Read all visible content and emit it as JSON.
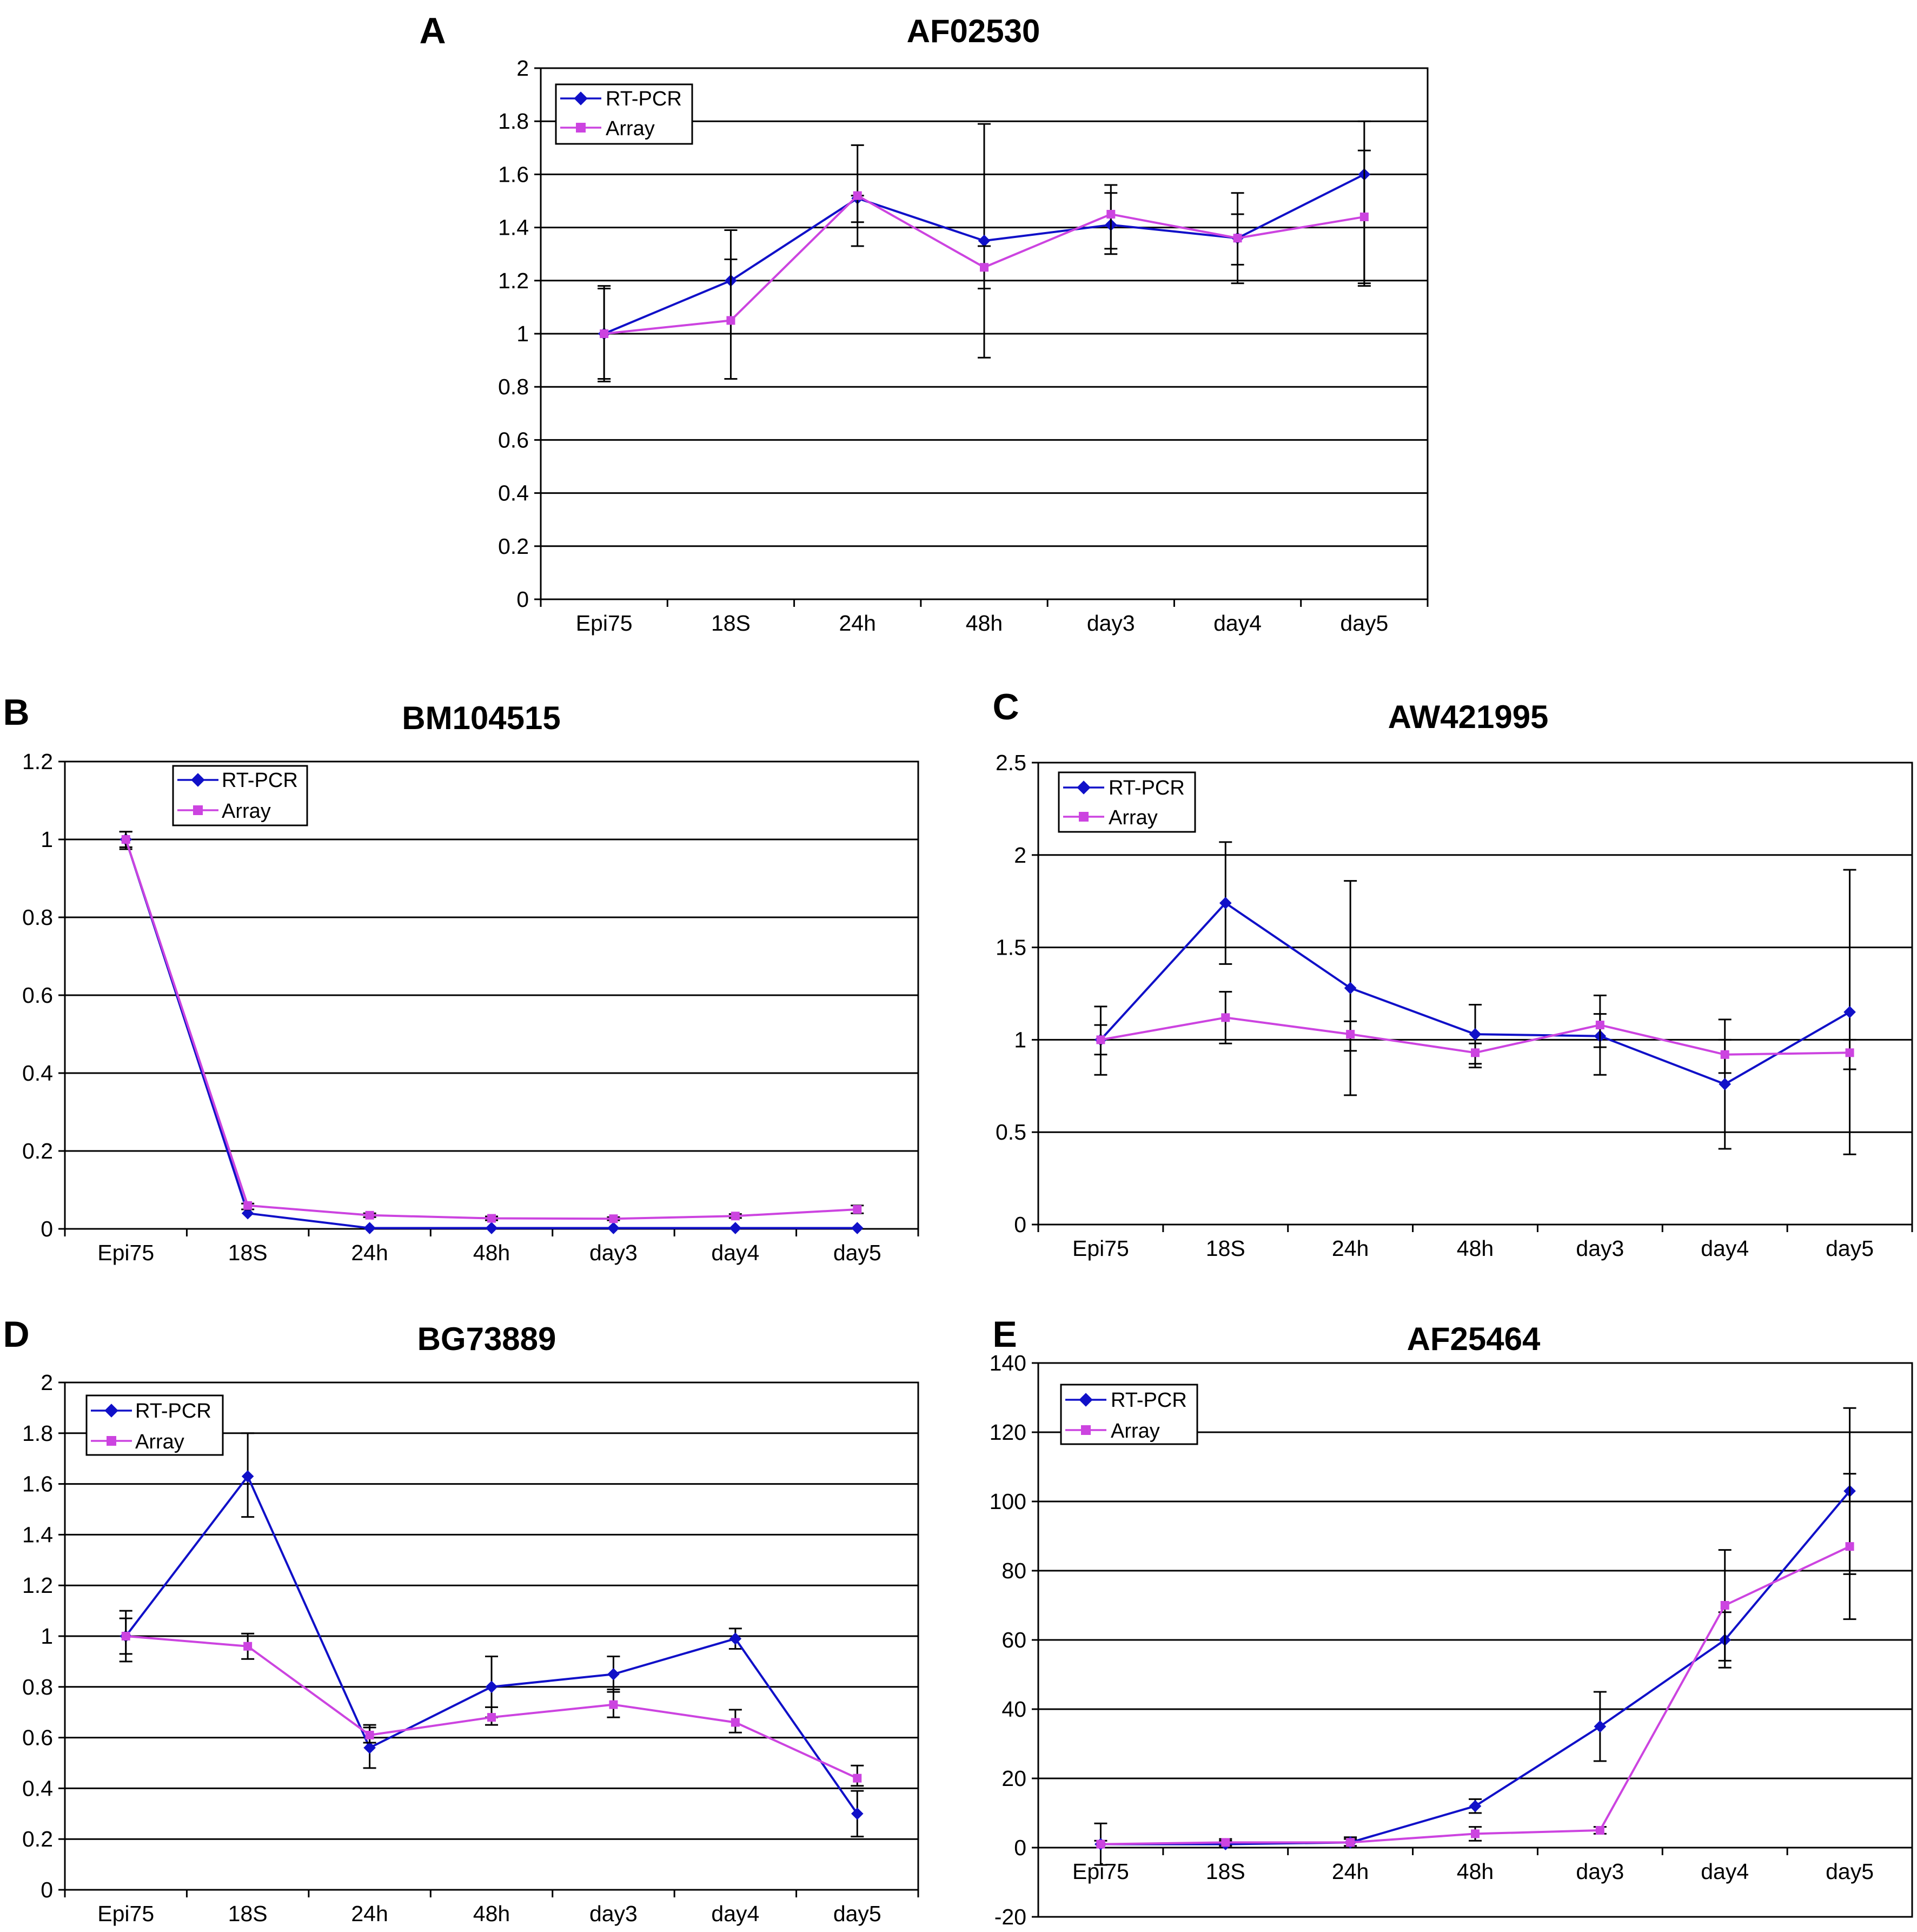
{
  "colors": {
    "rtpcr": "#1010c8",
    "array": "#cc44e0",
    "axis": "#000000",
    "grid": "#000000"
  },
  "chart_data": [
    {
      "panel": "A",
      "title": "AF02530",
      "type": "line",
      "categories": [
        "Epi75",
        "18S",
        "24h",
        "48h",
        "day3",
        "day4",
        "day5"
      ],
      "ylim": [
        0,
        2
      ],
      "yticks": [
        "0",
        "0.2",
        "0.4",
        "0.6",
        "0.8",
        "1",
        "1.2",
        "1.4",
        "1.6",
        "1.8",
        "2"
      ],
      "grid": true,
      "legend_position": "top-left",
      "series": [
        {
          "name": "RT-PCR",
          "values": [
            1.0,
            1.2,
            1.51,
            1.35,
            1.41,
            1.36,
            1.6
          ],
          "err_low": [
            0.82,
            1.0,
            1.33,
            0.91,
            1.32,
            1.19,
            1.19
          ],
          "err_high": [
            1.17,
            1.39,
            1.71,
            1.79,
            1.53,
            1.53,
            1.8
          ]
        },
        {
          "name": "Array",
          "values": [
            1.0,
            1.05,
            1.52,
            1.25,
            1.45,
            1.36,
            1.44
          ],
          "err_low": [
            0.83,
            0.83,
            1.42,
            1.17,
            1.3,
            1.26,
            1.18
          ],
          "err_high": [
            1.18,
            1.28,
            1.52,
            1.33,
            1.56,
            1.45,
            1.69
          ]
        }
      ]
    },
    {
      "panel": "B",
      "title": "BM104515",
      "type": "line",
      "categories": [
        "Epi75",
        "18S",
        "24h",
        "48h",
        "day3",
        "day4",
        "day5"
      ],
      "ylim": [
        0,
        1.2
      ],
      "yticks": [
        "0",
        "0.2",
        "0.4",
        "0.6",
        "0.8",
        "1",
        "1.2"
      ],
      "grid": true,
      "legend_position": "top-left",
      "series": [
        {
          "name": "RT-PCR",
          "values": [
            1.0,
            0.04,
            0.002,
            0.002,
            0.002,
            0.002,
            0.002
          ],
          "err_low": [
            0.98,
            0.04,
            0.002,
            0.002,
            0.002,
            0.002,
            0.002
          ],
          "err_high": [
            1.02,
            0.04,
            0.002,
            0.002,
            0.002,
            0.002,
            0.002
          ]
        },
        {
          "name": "Array",
          "values": [
            1.0,
            0.06,
            0.035,
            0.027,
            0.026,
            0.033,
            0.05
          ],
          "err_low": [
            0.975,
            0.05,
            0.03,
            0.022,
            0.022,
            0.028,
            0.04
          ],
          "err_high": [
            1.02,
            0.065,
            0.04,
            0.032,
            0.03,
            0.038,
            0.06
          ]
        }
      ]
    },
    {
      "panel": "C",
      "title": "AW421995",
      "type": "line",
      "categories": [
        "Epi75",
        "18S",
        "24h",
        "48h",
        "day3",
        "day4",
        "day5"
      ],
      "ylim": [
        0,
        2.5
      ],
      "yticks": [
        "0",
        "0.5",
        "1",
        "1.5",
        "2",
        "2.5"
      ],
      "grid": true,
      "legend_position": "top-left",
      "series": [
        {
          "name": "RT-PCR",
          "values": [
            1.0,
            1.74,
            1.28,
            1.03,
            1.02,
            0.76,
            1.15
          ],
          "err_low": [
            0.81,
            1.41,
            0.7,
            0.87,
            0.81,
            0.41,
            0.38
          ],
          "err_high": [
            1.18,
            2.07,
            1.86,
            1.19,
            1.24,
            1.11,
            1.92
          ]
        },
        {
          "name": "Array",
          "values": [
            1.0,
            1.12,
            1.03,
            0.93,
            1.08,
            0.92,
            0.93
          ],
          "err_low": [
            0.92,
            0.98,
            0.94,
            0.85,
            0.96,
            0.82,
            0.84
          ],
          "err_high": [
            1.08,
            1.26,
            1.1,
            0.98,
            1.14,
            1.0,
            1.0
          ]
        }
      ]
    },
    {
      "panel": "D",
      "title": "BG73889",
      "type": "line",
      "categories": [
        "Epi75",
        "18S",
        "24h",
        "48h",
        "day3",
        "day4",
        "day5"
      ],
      "ylim": [
        0,
        2
      ],
      "yticks": [
        "0",
        "0.2",
        "0.4",
        "0.6",
        "0.8",
        "1",
        "1.2",
        "1.4",
        "1.6",
        "1.8",
        "2"
      ],
      "grid": true,
      "legend_position": "top-left",
      "series": [
        {
          "name": "RT-PCR",
          "values": [
            1.0,
            1.63,
            0.56,
            0.8,
            0.85,
            0.99,
            0.3
          ],
          "err_low": [
            0.9,
            1.47,
            0.48,
            0.68,
            0.78,
            0.95,
            0.21
          ],
          "err_high": [
            1.1,
            1.8,
            0.65,
            0.92,
            0.92,
            1.03,
            0.39
          ]
        },
        {
          "name": "Array",
          "values": [
            1.0,
            0.96,
            0.61,
            0.68,
            0.73,
            0.66,
            0.44
          ],
          "err_low": [
            0.93,
            0.91,
            0.58,
            0.65,
            0.68,
            0.62,
            0.41
          ],
          "err_high": [
            1.07,
            1.01,
            0.64,
            0.72,
            0.79,
            0.71,
            0.49
          ]
        }
      ]
    },
    {
      "panel": "E",
      "title": "AF25464",
      "type": "line",
      "categories": [
        "Epi75",
        "18S",
        "24h",
        "48h",
        "day3",
        "day4",
        "day5"
      ],
      "ylim": [
        -20,
        140
      ],
      "yticks": [
        "-20",
        "0",
        "20",
        "40",
        "60",
        "80",
        "100",
        "120",
        "140"
      ],
      "grid": true,
      "legend_position": "top-left",
      "series": [
        {
          "name": "RT-PCR",
          "values": [
            1,
            1,
            1.5,
            12,
            35,
            60,
            103
          ],
          "err_low": [
            -5,
            0,
            0,
            10,
            25,
            52,
            79
          ],
          "err_high": [
            7,
            2,
            3,
            14,
            45,
            68,
            127
          ]
        },
        {
          "name": "Array",
          "values": [
            1,
            1.5,
            1.5,
            4,
            5,
            70,
            87
          ],
          "err_low": [
            0,
            0.5,
            0.5,
            2,
            4,
            54,
            66
          ],
          "err_high": [
            2,
            2.5,
            2.5,
            6,
            6,
            86,
            108
          ]
        }
      ]
    }
  ]
}
